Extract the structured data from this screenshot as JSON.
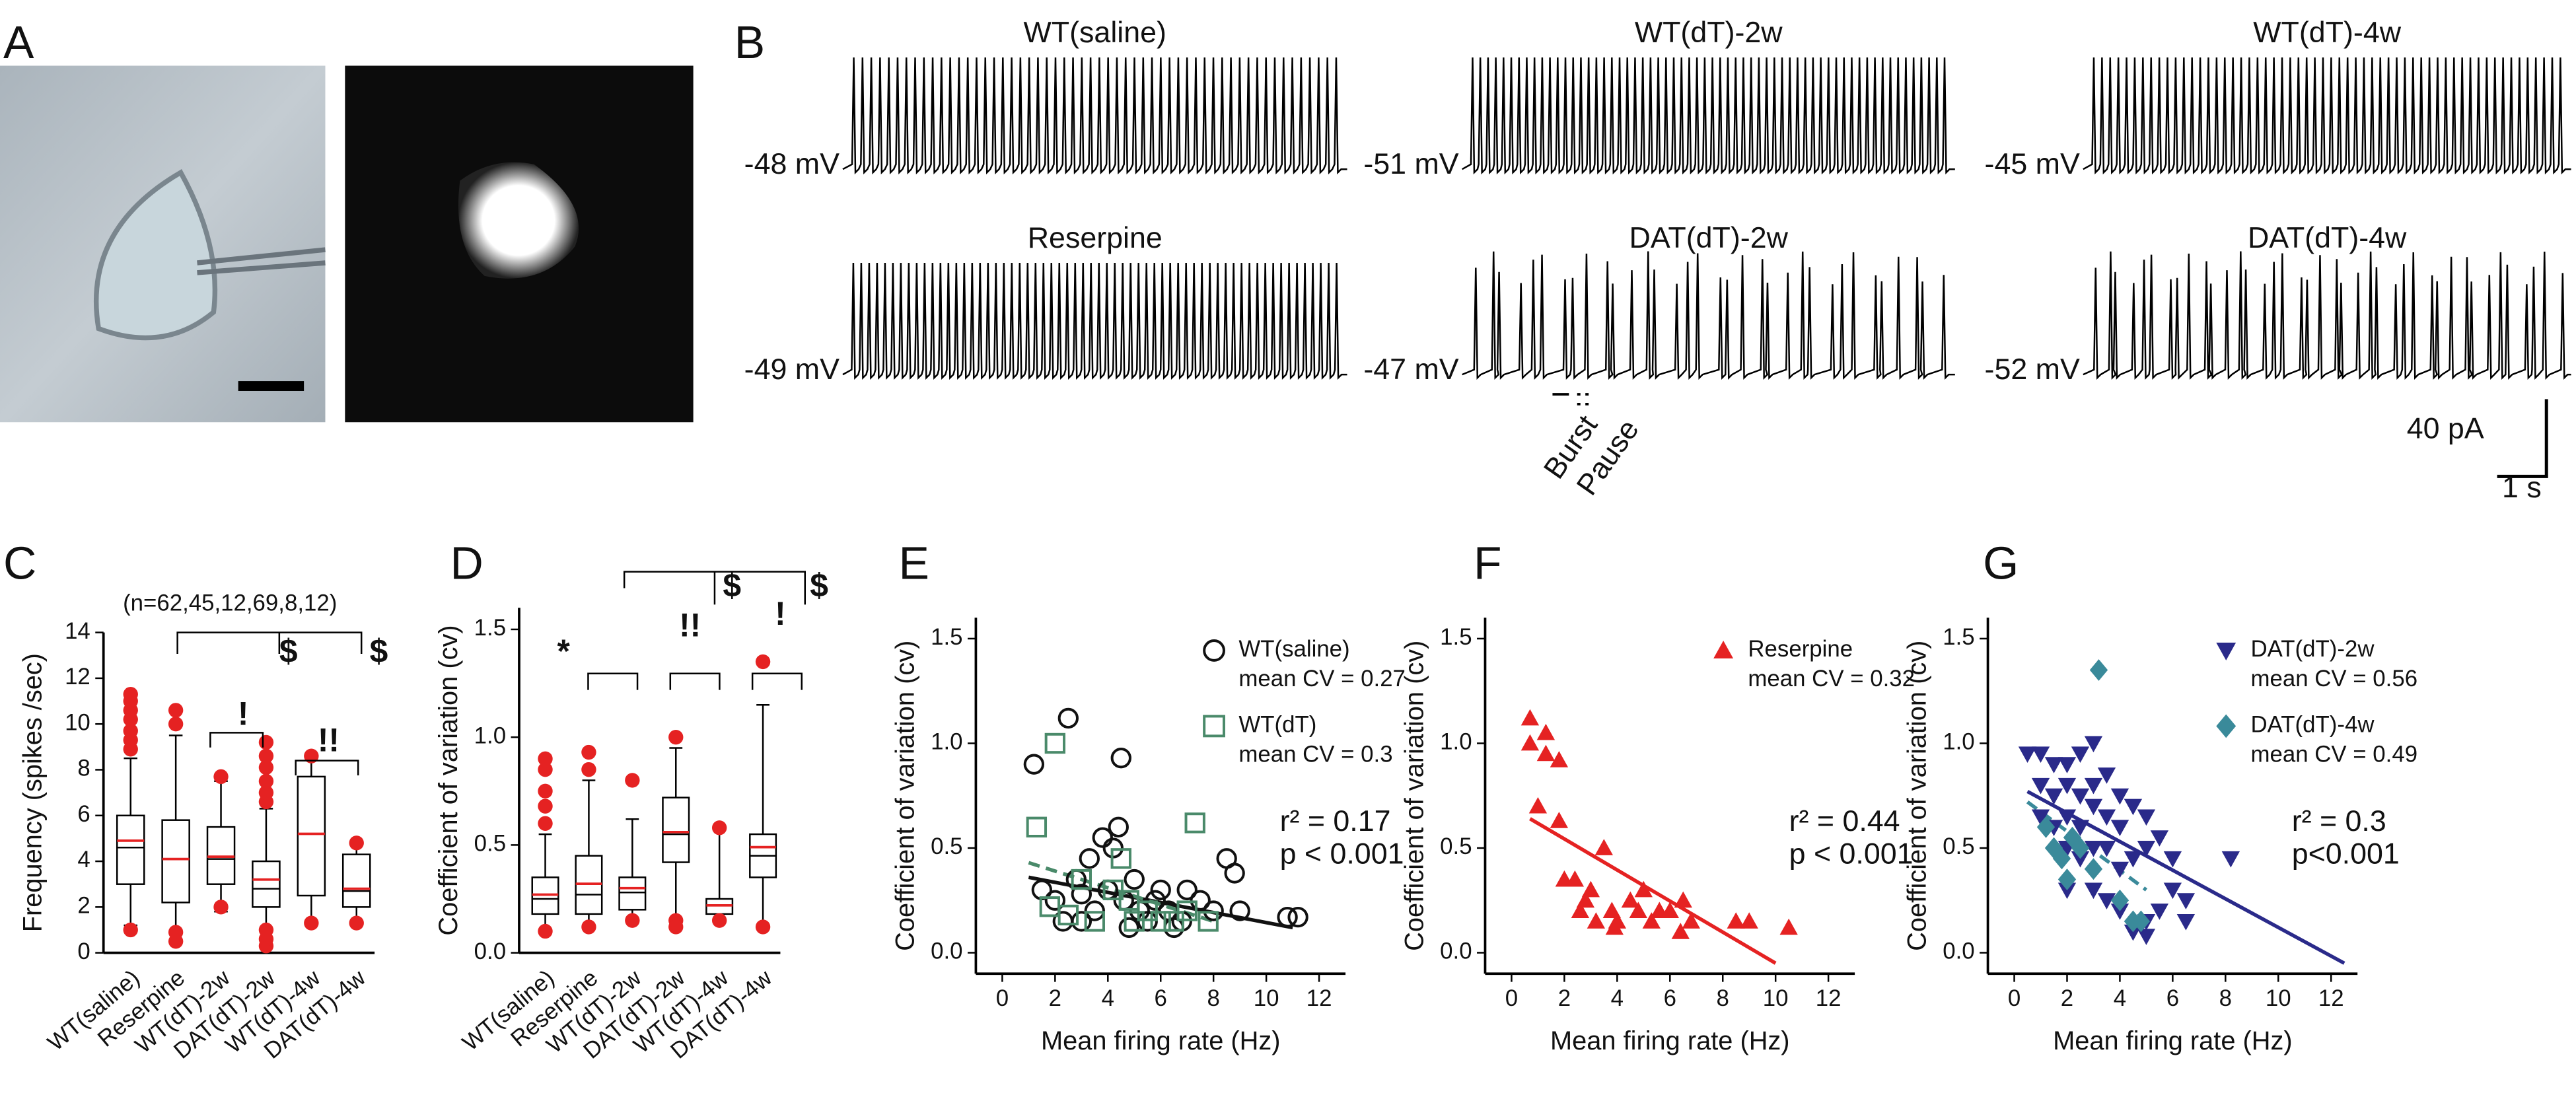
{
  "panel_labels": [
    "A",
    "B",
    "C",
    "D",
    "E",
    "F",
    "G"
  ],
  "traces": [
    {
      "title": "WT(saline)",
      "label": "-48 mV"
    },
    {
      "title": "WT(dT)-2w",
      "label": "-51 mV"
    },
    {
      "title": "WT(dT)-4w",
      "label": "-45 mV"
    },
    {
      "title": "Reserpine",
      "label": "-49 mV"
    },
    {
      "title": "DAT(dT)-2w",
      "label": "-47 mV"
    },
    {
      "title": "DAT(dT)-4w",
      "label": "-52 mV"
    }
  ],
  "burst_label": "Burst",
  "pause_label": "Pause",
  "scale_current": "40 pA",
  "scale_time": "1 s",
  "chart_data": [
    {
      "type": "box",
      "ylabel": "Frequency (spikes /sec)",
      "ylim": [
        0,
        14
      ],
      "yticks": [
        0,
        2,
        4,
        6,
        8,
        10,
        12,
        14
      ],
      "mean_color": "#e52222",
      "categories": [
        "WT(saline)",
        "Reserpine",
        "WT(dT)-2w",
        "DAT(dT)-2w",
        "WT(dT)-4w",
        "DAT(dT)-4w"
      ],
      "boxes": [
        {
          "low": 1.2,
          "q1": 3.0,
          "median": 4.6,
          "mean": 4.9,
          "q3": 6.0,
          "high": 8.5,
          "outliers": [
            8.9,
            9.3,
            9.7,
            10.2,
            10.6,
            11.0,
            11.3,
            1.0
          ]
        },
        {
          "low": 0.8,
          "q1": 2.2,
          "median": 4.1,
          "mean": 4.1,
          "q3": 5.8,
          "high": 9.5,
          "outliers": [
            10.0,
            10.6,
            0.5,
            0.9
          ]
        },
        {
          "low": 1.8,
          "q1": 3.0,
          "median": 4.1,
          "mean": 4.2,
          "q3": 5.5,
          "high": 7.5,
          "outliers": [
            7.7,
            2.0
          ]
        },
        {
          "low": 1.0,
          "q1": 2.0,
          "median": 2.8,
          "mean": 3.2,
          "q3": 4.0,
          "high": 6.3,
          "outliers": [
            6.6,
            7.0,
            7.5,
            8.1,
            8.6,
            9.2,
            0.3,
            0.6,
            1.0
          ]
        },
        {
          "low": 1.3,
          "q1": 2.5,
          "median": 5.2,
          "mean": 5.2,
          "q3": 7.7,
          "high": 8.5,
          "outliers": [
            8.6,
            1.3
          ]
        },
        {
          "low": 1.3,
          "q1": 2.0,
          "median": 2.7,
          "mean": 2.8,
          "q3": 4.3,
          "high": 4.8,
          "outliers": [
            4.8,
            1.3
          ]
        }
      ],
      "annotations": [
        "(n=62,45,12,69,8,12)",
        "$",
        "$",
        "!",
        "!!"
      ]
    },
    {
      "type": "box",
      "ylabel": "Coefficient of variation (cv)",
      "ylim": [
        0,
        1.6
      ],
      "yticks": [
        {
          "value": 0,
          "label": "0.0"
        },
        0.5,
        {
          "value": 1,
          "label": "1.0"
        },
        1.5
      ],
      "mean_color": "#e52222",
      "categories": [
        "WT(saline)",
        "Reserpine",
        "WT(dT)-2w",
        "DAT(dT)-2w",
        "WT(dT)-4w",
        "DAT(dT)-4w"
      ],
      "boxes": [
        {
          "low": 0.1,
          "q1": 0.18,
          "median": 0.25,
          "mean": 0.27,
          "q3": 0.35,
          "high": 0.55,
          "outliers": [
            0.6,
            0.68,
            0.75,
            0.85,
            0.9,
            0.1
          ]
        },
        {
          "low": 0.12,
          "q1": 0.18,
          "median": 0.27,
          "mean": 0.32,
          "q3": 0.45,
          "high": 0.8,
          "outliers": [
            0.85,
            0.93,
            0.12
          ]
        },
        {
          "low": 0.15,
          "q1": 0.2,
          "median": 0.28,
          "mean": 0.3,
          "q3": 0.35,
          "high": 0.62,
          "outliers": [
            0.8,
            0.15
          ]
        },
        {
          "low": 0.15,
          "q1": 0.42,
          "median": 0.55,
          "mean": 0.56,
          "q3": 0.72,
          "high": 0.95,
          "outliers": [
            1.0,
            0.15,
            0.12
          ]
        },
        {
          "low": 0.15,
          "q1": 0.18,
          "median": 0.22,
          "mean": 0.22,
          "q3": 0.25,
          "high": 0.57,
          "outliers": [
            0.58,
            0.15
          ]
        },
        {
          "low": 0.12,
          "q1": 0.35,
          "median": 0.45,
          "mean": 0.49,
          "q3": 0.55,
          "high": 1.15,
          "outliers": [
            1.35,
            0.12
          ]
        }
      ],
      "annotations": [
        "*",
        "!!",
        "!",
        "$",
        "$"
      ]
    },
    {
      "type": "scatter",
      "xlabel": "Mean firing rate (Hz)",
      "ylabel": "Coefficient of variation (cv)",
      "xlim": [
        -1,
        13
      ],
      "xticks": [
        0,
        2,
        4,
        6,
        8,
        10,
        12
      ],
      "ylim": [
        -0.1,
        1.6
      ],
      "yticks": [
        {
          "value": 0,
          "label": "0.0"
        },
        0.5,
        {
          "value": 1,
          "label": "1.0"
        },
        1.5
      ],
      "series": [
        {
          "name": "WT(saline)",
          "mean_label": "mean CV = 0.27",
          "marker": "circle",
          "color": "#111111",
          "x": [
            1.2,
            2.5,
            4.5,
            1.5,
            2,
            2.3,
            2.8,
            3,
            3.3,
            3.5,
            3.8,
            4,
            4.2,
            4.4,
            4.6,
            5,
            5.2,
            5.5,
            5.8,
            6,
            6.3,
            6.8,
            7,
            7.5,
            8,
            8.5,
            8.8,
            9,
            10.8,
            11.2,
            3,
            4.8,
            6.5
          ],
          "values": [
            0.9,
            1.12,
            0.93,
            0.3,
            0.25,
            0.15,
            0.35,
            0.28,
            0.45,
            0.2,
            0.55,
            0.3,
            0.5,
            0.6,
            0.25,
            0.35,
            0.2,
            0.15,
            0.25,
            0.3,
            0.2,
            0.15,
            0.3,
            0.25,
            0.2,
            0.45,
            0.38,
            0.2,
            0.17,
            0.17,
            0.15,
            0.12,
            0.12
          ]
        },
        {
          "name": "WT(dT)",
          "mean_label": "mean CV = 0.3",
          "marker": "square",
          "color": "#4a8a6a",
          "x": [
            1.3,
            2,
            7.3,
            1.8,
            2.5,
            3.5,
            4.2,
            4.5,
            5,
            5.5,
            6,
            6.5,
            7,
            7.8,
            4.8,
            3
          ],
          "values": [
            0.6,
            1.0,
            0.62,
            0.22,
            0.18,
            0.15,
            0.3,
            0.45,
            0.15,
            0.2,
            0.15,
            0.15,
            0.2,
            0.15,
            0.25,
            0.35
          ]
        }
      ],
      "fits": [
        {
          "color": "#111111",
          "dashed": false,
          "x": [
            1,
            11
          ],
          "y": [
            0.36,
            0.12
          ]
        },
        {
          "color": "#4a8a6a",
          "dashed": true,
          "x": [
            1,
            8
          ],
          "y": [
            0.43,
            0.15
          ]
        }
      ],
      "stats": [
        "r² = 0.17",
        "p < 0.001"
      ]
    },
    {
      "type": "scatter",
      "xlabel": "Mean firing rate (Hz)",
      "ylabel": "Coefficient of variation (cv)",
      "xlim": [
        -1,
        13
      ],
      "xticks": [
        0,
        2,
        4,
        6,
        8,
        10,
        12
      ],
      "ylim": [
        -0.1,
        1.6
      ],
      "yticks": [
        {
          "value": 0,
          "label": "0.0"
        },
        0.5,
        {
          "value": 1,
          "label": "1.0"
        },
        1.5
      ],
      "series": [
        {
          "name": "Reserpine",
          "mean_label": "mean CV = 0.32",
          "marker": "triangle",
          "color": "#e52222",
          "x": [
            0.7,
            0.7,
            1.3,
            1.3,
            1.8,
            1,
            1.8,
            2,
            2.4,
            3,
            3.5,
            2.6,
            3.2,
            3.8,
            4,
            4.5,
            4.8,
            5,
            5.3,
            5.6,
            6,
            6.5,
            6.8,
            6.4,
            8.5,
            9,
            10.5,
            3.9,
            2.8
          ],
          "values": [
            1.12,
            1.0,
            1.05,
            0.95,
            0.92,
            0.7,
            0.63,
            0.35,
            0.35,
            0.3,
            0.5,
            0.2,
            0.15,
            0.2,
            0.15,
            0.25,
            0.2,
            0.3,
            0.15,
            0.2,
            0.2,
            0.25,
            0.15,
            0.1,
            0.15,
            0.15,
            0.12,
            0.12,
            0.25
          ]
        }
      ],
      "fits": [
        {
          "color": "#e52222",
          "dashed": false,
          "x": [
            0.7,
            10
          ],
          "y": [
            0.64,
            -0.05
          ]
        }
      ],
      "stats": [
        "r² = 0.44",
        "p < 0.001"
      ]
    },
    {
      "type": "scatter",
      "xlabel": "Mean firing rate (Hz)",
      "ylabel": "Coefficient of variation (cv)",
      "xlim": [
        -1,
        13
      ],
      "xticks": [
        0,
        2,
        4,
        6,
        8,
        10,
        12
      ],
      "ylim": [
        -0.1,
        1.6
      ],
      "yticks": [
        {
          "value": 0,
          "label": "0.0"
        },
        0.5,
        {
          "value": 1,
          "label": "1.0"
        },
        1.5
      ],
      "series": [
        {
          "name": "DAT(dT)-2w",
          "mean_label": "mean CV = 0.56",
          "marker": "down-triangle",
          "color": "#2a2a8a",
          "x": [
            0.5,
            1,
            1.5,
            2,
            2.5,
            3,
            1,
            1.5,
            2,
            2.5,
            3,
            3.5,
            4,
            1,
            1.5,
            2,
            2.5,
            3,
            3.5,
            4,
            4.5,
            5,
            5.5,
            6,
            2,
            2.5,
            3,
            3.5,
            4,
            4.5,
            5,
            2,
            3,
            3.5,
            4,
            4.5,
            5,
            5.5,
            6,
            6.5,
            8.2,
            6.5,
            5
          ],
          "values": [
            0.95,
            0.95,
            0.9,
            0.9,
            0.95,
            1.0,
            0.8,
            0.75,
            0.8,
            0.75,
            0.8,
            0.85,
            0.75,
            0.65,
            0.6,
            0.65,
            0.6,
            0.7,
            0.65,
            0.6,
            0.7,
            0.65,
            0.55,
            0.45,
            0.5,
            0.45,
            0.5,
            0.5,
            0.4,
            0.45,
            0.5,
            0.3,
            0.3,
            0.25,
            0.2,
            0.1,
            0.15,
            0.2,
            0.3,
            0.25,
            0.45,
            0.15,
            0.08
          ]
        },
        {
          "name": "DAT(dT)-4w",
          "mean_label": "mean CV = 0.49",
          "marker": "diamond",
          "color": "#3a8a9a",
          "x": [
            3.2,
            1.2,
            1.5,
            1.8,
            2,
            2.2,
            2.5,
            3,
            4,
            4.5,
            4.8
          ],
          "values": [
            1.35,
            0.6,
            0.5,
            0.45,
            0.35,
            0.55,
            0.5,
            0.4,
            0.25,
            0.15,
            0.15
          ]
        }
      ],
      "fits": [
        {
          "color": "#2a2a8a",
          "dashed": false,
          "x": [
            0.5,
            12.5
          ],
          "y": [
            0.77,
            -0.05
          ]
        },
        {
          "color": "#3a8a9a",
          "dashed": true,
          "x": [
            0.5,
            5
          ],
          "y": [
            0.72,
            0.3
          ]
        }
      ],
      "stats": [
        "r² = 0.3",
        "p<0.001"
      ]
    }
  ]
}
